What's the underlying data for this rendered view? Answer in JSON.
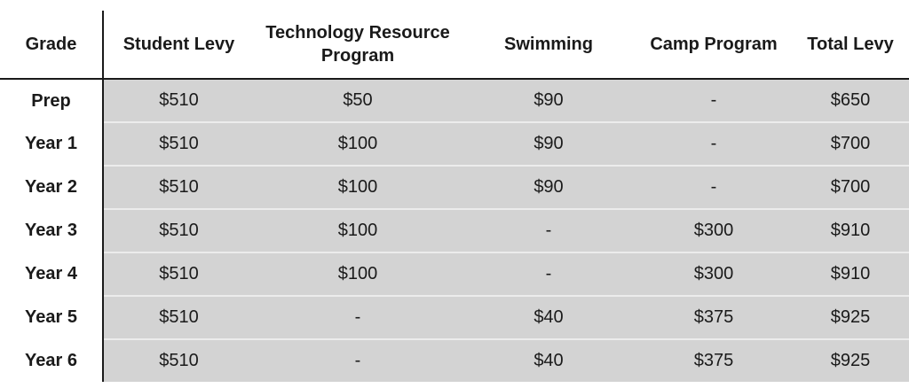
{
  "table": {
    "headers": {
      "grade": "Grade",
      "student_levy": "Student Levy",
      "technology": "Technology Resource Program",
      "swimming": "Swimming",
      "camp": "Camp Program",
      "total": "Total Levy"
    },
    "rows": [
      {
        "grade": "Prep",
        "student_levy": "$510",
        "technology": "$50",
        "swimming": "$90",
        "camp": "-",
        "total": "$650"
      },
      {
        "grade": "Year 1",
        "student_levy": "$510",
        "technology": "$100",
        "swimming": "$90",
        "camp": "-",
        "total": "$700"
      },
      {
        "grade": "Year 2",
        "student_levy": "$510",
        "technology": "$100",
        "swimming": "$90",
        "camp": "-",
        "total": "$700"
      },
      {
        "grade": "Year 3",
        "student_levy": "$510",
        "technology": "$100",
        "swimming": "-",
        "camp": "$300",
        "total": "$910"
      },
      {
        "grade": "Year 4",
        "student_levy": "$510",
        "technology": "$100",
        "swimming": "-",
        "camp": "$300",
        "total": "$910"
      },
      {
        "grade": "Year 5",
        "student_levy": "$510",
        "technology": "-",
        "swimming": "$40",
        "camp": "$375",
        "total": "$925"
      },
      {
        "grade": "Year 6",
        "student_levy": "$510",
        "technology": "-",
        "swimming": "$40",
        "camp": "$375",
        "total": "$925"
      }
    ]
  }
}
